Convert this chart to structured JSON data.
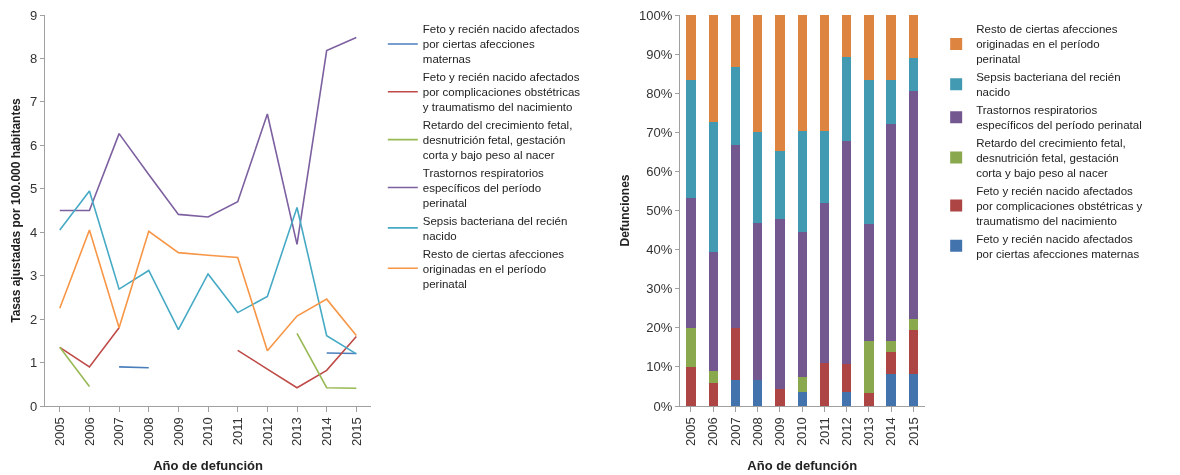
{
  "chart_data": [
    {
      "type": "line",
      "xlabel": "Año de defunción",
      "ylabel": "Tasas ajustadas por 100.000 habitantes",
      "categories": [
        "2005",
        "2006",
        "2007",
        "2008",
        "2009",
        "2010",
        "2011",
        "2012",
        "2013",
        "2014",
        "2015"
      ],
      "ylim": [
        0,
        9
      ],
      "yticks": [
        0,
        1,
        2,
        3,
        4,
        5,
        6,
        7,
        8,
        9
      ],
      "legend": "right",
      "marker": "none",
      "line_style": "solid",
      "series": [
        {
          "name": "Feto y recién nacido afectados por ciertas afecciones maternas",
          "color": "#4a7ebb",
          "values": [
            null,
            null,
            0.9,
            0.88,
            null,
            null,
            null,
            null,
            null,
            1.22,
            1.21
          ]
        },
        {
          "name": "Feto y recién nacido afectados por complicaciones obstétricas y traumatismo del nacimiento",
          "color": "#be4b48",
          "values": [
            1.35,
            0.9,
            1.8,
            null,
            null,
            null,
            1.28,
            0.85,
            0.42,
            0.82,
            1.6
          ]
        },
        {
          "name": "Retardo del crecimiento fetal, desnutrición fetal, gestación corta y bajo peso al nacer",
          "color": "#98b954",
          "values": [
            1.35,
            0.45,
            null,
            null,
            null,
            null,
            null,
            null,
            1.67,
            0.42,
            0.41
          ]
        },
        {
          "name": "Trastornos respiratorios específicos del período perinatal",
          "color": "#7d60a0",
          "values": [
            4.5,
            4.5,
            6.27,
            5.33,
            4.41,
            4.35,
            4.7,
            6.72,
            3.72,
            8.18,
            8.48
          ]
        },
        {
          "name": "Sepsis bacteriana del recién nacido",
          "color": "#46aac5",
          "values": [
            4.05,
            4.95,
            2.69,
            3.12,
            1.76,
            3.04,
            2.15,
            2.52,
            4.57,
            1.62,
            1.2
          ]
        },
        {
          "name": "Resto de ciertas afecciones originadas en el período perinatal",
          "color": "#f79646",
          "values": [
            2.25,
            4.05,
            1.8,
            4.02,
            3.53,
            3.47,
            3.42,
            1.27,
            2.07,
            2.46,
            1.62
          ]
        }
      ]
    },
    {
      "type": "bar",
      "stacked": true,
      "xlabel": "Año de defunción",
      "ylabel": "Defunciones",
      "categories": [
        "2005",
        "2006",
        "2007",
        "2008",
        "2009",
        "2010",
        "2011",
        "2012",
        "2013",
        "2014",
        "2015"
      ],
      "ylim": [
        0,
        100
      ],
      "yticks": [
        {
          "value": 0,
          "label": "0%"
        },
        {
          "value": 10,
          "label": "10%"
        },
        {
          "value": 20,
          "label": "20%"
        },
        {
          "value": 30,
          "label": "30%"
        },
        {
          "value": 40,
          "label": "40%"
        },
        {
          "value": 50,
          "label": "50%"
        },
        {
          "value": 60,
          "label": "60%"
        },
        {
          "value": 70,
          "label": "70%"
        },
        {
          "value": 80,
          "label": "80%"
        },
        {
          "value": 90,
          "label": "90%"
        },
        {
          "value": 100,
          "label": "100%"
        }
      ],
      "legend": "right",
      "series": [
        {
          "name": "Feto y recién nacido afectados por ciertas afecciones maternas",
          "color": "#4373ad",
          "values": [
            0,
            0,
            6.7,
            6.7,
            0,
            3.7,
            0,
            3.6,
            0,
            8.3,
            8.3
          ]
        },
        {
          "name": "Feto y recién nacido afectados por complicaciones obstétricas y traumatismo del nacimiento",
          "color": "#ad4544",
          "values": [
            10,
            6,
            13.3,
            0,
            4.3,
            0,
            11.1,
            7.1,
            3.3,
            5.6,
            11.1
          ]
        },
        {
          "name": "Retardo del crecimiento fetal, desnutrición fetal, gestación corta y bajo peso al nacer",
          "color": "#8aa84d",
          "values": [
            10,
            3,
            0,
            0,
            0,
            3.7,
            0,
            0,
            13.3,
            2.8,
            2.8
          ]
        },
        {
          "name": "Trastornos respiratorios específicos del período perinatal",
          "color": "#73588f",
          "values": [
            33.3,
            30.4,
            46.7,
            40,
            43.5,
            37,
            40.7,
            57.1,
            30,
            55.5,
            58.4
          ]
        },
        {
          "name": "Sepsis bacteriana del recién nacido",
          "color": "#4299b2",
          "values": [
            30,
            33.3,
            20,
            23.3,
            17.4,
            25.9,
            18.5,
            21.4,
            36.7,
            11.1,
            8.3
          ]
        },
        {
          "name": "Resto de ciertas afecciones originadas en el período perinatal",
          "color": "#dd8440",
          "values": [
            16.7,
            27.3,
            13.3,
            30,
            34.8,
            29.7,
            29.7,
            10.8,
            16.7,
            16.7,
            11.1
          ]
        }
      ]
    }
  ]
}
